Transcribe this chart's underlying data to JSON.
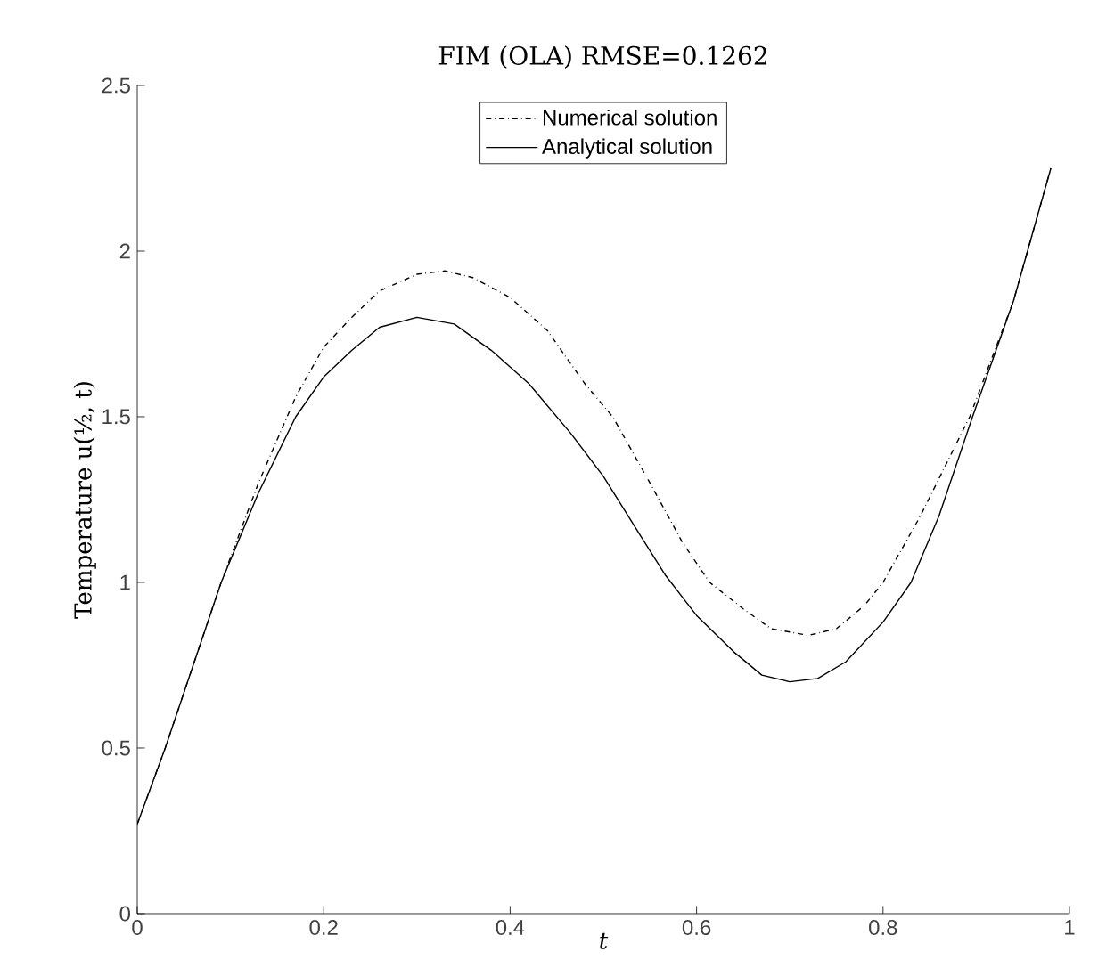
{
  "chart_data": {
    "type": "line",
    "title": "FIM (OLA)  RMSE=0.1262",
    "xlabel": "t",
    "ylabel": "Temperature u(½, t)",
    "xlim": [
      0,
      1
    ],
    "ylim": [
      0,
      2.5
    ],
    "xticks": [
      0,
      0.2,
      0.4,
      0.6,
      0.8,
      1
    ],
    "yticks": [
      0,
      0.5,
      1,
      1.5,
      2,
      2.5
    ],
    "grid": false,
    "legend": "top",
    "series": [
      {
        "name": "Numerical solution",
        "color": "#000000",
        "line_style": "dashdot",
        "x": [
          0,
          0.03,
          0.06,
          0.09,
          0.13,
          0.17,
          0.2,
          0.23,
          0.26,
          0.3,
          0.33,
          0.36,
          0.4,
          0.44,
          0.48,
          0.51,
          0.55,
          0.585,
          0.614,
          0.65,
          0.68,
          0.72,
          0.75,
          0.78,
          0.8,
          0.84,
          0.893,
          0.94,
          0.98
        ],
        "values": [
          0.27,
          0.5,
          0.75,
          1.0,
          1.3,
          1.56,
          1.71,
          1.8,
          1.88,
          1.93,
          1.94,
          1.92,
          1.86,
          1.76,
          1.6,
          1.5,
          1.3,
          1.12,
          1.0,
          0.92,
          0.86,
          0.84,
          0.86,
          0.93,
          1.0,
          1.2,
          1.5,
          1.85,
          2.25
        ]
      },
      {
        "name": "Analytical solution",
        "color": "#000000",
        "line_style": "solid",
        "x": [
          0,
          0.03,
          0.06,
          0.09,
          0.13,
          0.17,
          0.2,
          0.23,
          0.26,
          0.3,
          0.34,
          0.38,
          0.42,
          0.465,
          0.5,
          0.54,
          0.567,
          0.6,
          0.64,
          0.67,
          0.7,
          0.73,
          0.76,
          0.8,
          0.83,
          0.86,
          0.896,
          0.94,
          0.98
        ],
        "values": [
          0.27,
          0.5,
          0.75,
          1.0,
          1.27,
          1.5,
          1.62,
          1.7,
          1.77,
          1.8,
          1.78,
          1.7,
          1.6,
          1.45,
          1.32,
          1.14,
          1.02,
          0.9,
          0.79,
          0.72,
          0.7,
          0.71,
          0.76,
          0.88,
          1.0,
          1.2,
          1.5,
          1.85,
          2.25
        ]
      }
    ]
  }
}
